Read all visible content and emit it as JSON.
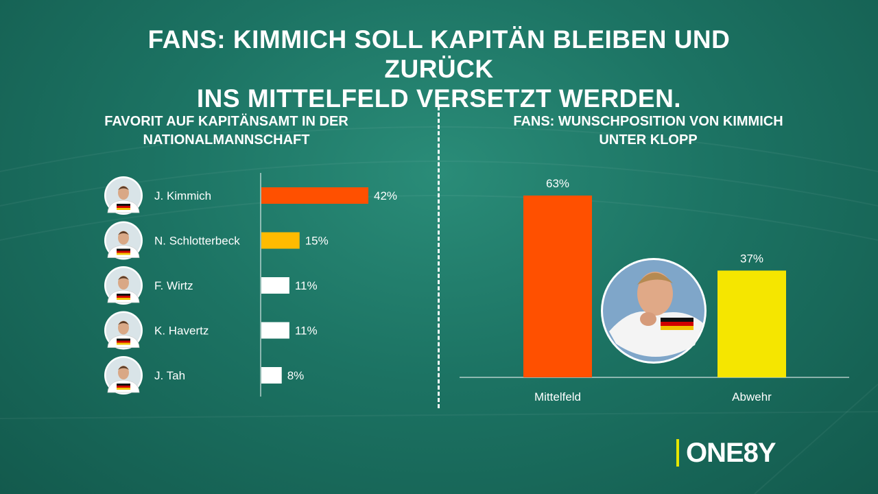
{
  "header": {
    "title_line1": "FANS: KIMMICH SOLL KAPITÄN BLEIBEN UND ZURÜCK",
    "title_line2": "INS MITTELFELD VERSETZT WERDEN."
  },
  "logo": {
    "text": "ONE8Y",
    "bar_color": "#e6e600"
  },
  "chart_data": [
    {
      "type": "bar",
      "orientation": "horizontal",
      "title_line1": "FAVORIT AUF KAPITÄNSAMT IN DER",
      "title_line2": "NATIONALMANNSCHAFT",
      "categories": [
        "J. Kimmich",
        "N. Schlotterbeck",
        "F. Wirtz",
        "K. Havertz",
        "J. Tah"
      ],
      "values": [
        42,
        15,
        11,
        11,
        8
      ],
      "data_labels": [
        "42%",
        "15%",
        "11%",
        "11%",
        "8%"
      ],
      "colors": [
        "#ff5000",
        "#ffbb00",
        "#ffffff",
        "#ffffff",
        "#ffffff"
      ],
      "unit": "%",
      "xlim": [
        0,
        100
      ],
      "grid": false,
      "legend": "none"
    },
    {
      "type": "bar",
      "orientation": "vertical",
      "title_line1": "FANS: WUNSCHPOSITION VON KIMMICH",
      "title_line2": "UNTER KLOPP",
      "categories": [
        "Mittelfeld",
        "Abwehr"
      ],
      "values": [
        63,
        37
      ],
      "data_labels": [
        "63%",
        "37%"
      ],
      "colors": [
        "#ff5000",
        "#f5e600"
      ],
      "unit": "%",
      "ylim": [
        0,
        63
      ],
      "grid": false,
      "legend": "none"
    }
  ]
}
